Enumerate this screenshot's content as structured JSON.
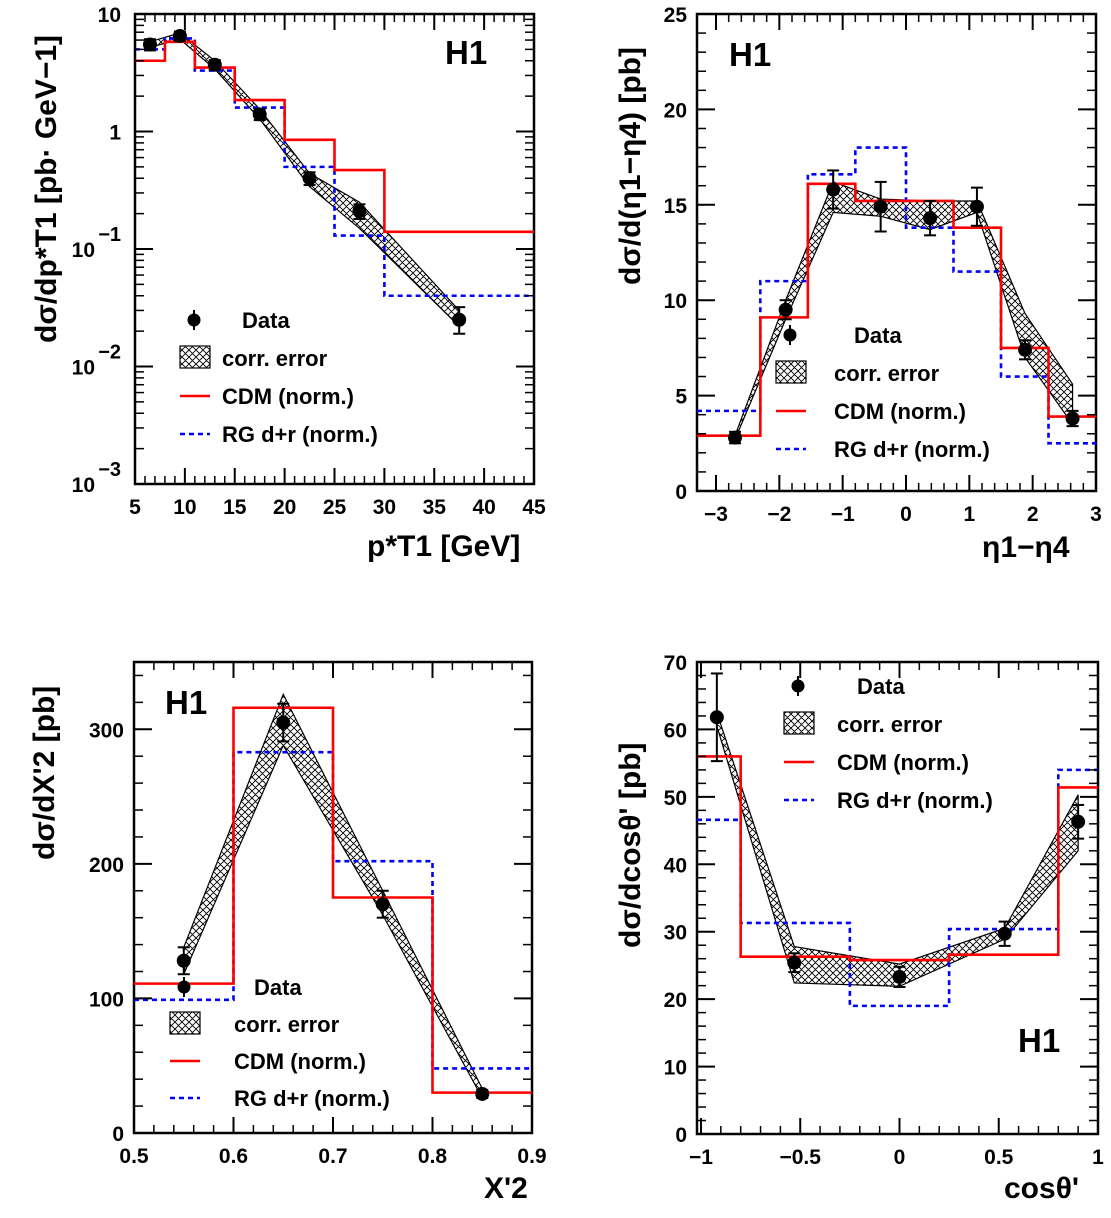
{
  "chart_data": [
    {
      "type": "line",
      "panel": "top-left",
      "label": "H1",
      "ylabel": "dσ/dp*T1 [pb· GeV−1]",
      "xlabel": "p*T1 [GeV]",
      "xlim": [
        5,
        45
      ],
      "ylim": [
        0.001,
        10
      ],
      "yscale": "log",
      "xticks": [
        "5",
        "10",
        "15",
        "20",
        "25",
        "30",
        "35",
        "40",
        "45"
      ],
      "yticks": [
        {
          "value": 10,
          "base": "10",
          "exp": ""
        },
        {
          "value": 1,
          "base": "1",
          "exp": ""
        },
        {
          "value": 0.1,
          "base": "10",
          "exp": "−1"
        },
        {
          "value": 0.01,
          "base": "10",
          "exp": "−2"
        },
        {
          "value": 0.001,
          "base": "10",
          "exp": "−3"
        }
      ],
      "legend": {
        "placement": "bottom-left",
        "data": "Data",
        "corr": "corr. error",
        "cdm": "CDM (norm.)",
        "rg": "RG d+r (norm.)"
      },
      "data": {
        "x": [
          6.5,
          9.5,
          13,
          17.5,
          22.5,
          27.5,
          37.5
        ],
        "y": [
          5.5,
          6.5,
          3.7,
          1.4,
          0.4,
          0.21,
          0.025
        ],
        "err_up": [
          0.6,
          0.6,
          0.35,
          0.15,
          0.05,
          0.03,
          0.007
        ],
        "err_dn": [
          0.6,
          0.6,
          0.35,
          0.15,
          0.05,
          0.03,
          0.006
        ]
      },
      "band": {
        "x": [
          6.5,
          9.5,
          13,
          17.5,
          22.5,
          27.5,
          37.5
        ],
        "lo": [
          5.2,
          6.1,
          3.4,
          1.28,
          0.34,
          0.15,
          0.022
        ],
        "hi": [
          5.8,
          6.9,
          4.0,
          1.55,
          0.44,
          0.25,
          0.03
        ]
      },
      "cdm": {
        "edges": [
          5,
          8,
          11,
          15,
          20,
          25,
          30,
          45
        ],
        "values": [
          4.0,
          5.8,
          3.5,
          1.85,
          0.85,
          0.47,
          0.14
        ]
      },
      "rg": {
        "edges": [
          5,
          8,
          11,
          15,
          20,
          25,
          30,
          45
        ],
        "values": [
          5.0,
          6.2,
          3.3,
          1.6,
          0.5,
          0.13,
          0.04
        ]
      }
    },
    {
      "type": "line",
      "panel": "top-right",
      "label": "H1",
      "ylabel": "dσ/d(η1−η4) [pb]",
      "xlabel": "η1−η4",
      "xlim": [
        -3.3,
        3.0
      ],
      "ylim": [
        0,
        25
      ],
      "xticks": [
        {
          "value": -3,
          "label": "−3"
        },
        {
          "value": -2,
          "label": "−2"
        },
        {
          "value": -1,
          "label": "−1"
        },
        {
          "value": 0,
          "label": "0"
        },
        {
          "value": 1,
          "label": "1"
        },
        {
          "value": 2,
          "label": "2"
        },
        {
          "value": 3,
          "label": "3"
        }
      ],
      "yticks": [
        "0",
        "5",
        "10",
        "15",
        "20",
        "25"
      ],
      "legend": {
        "placement": "bottom-center",
        "data": "Data",
        "corr": "corr. error",
        "cdm": "CDM (norm.)",
        "rg": "RG d+r (norm.)"
      },
      "data": {
        "x": [
          -2.7,
          -1.9,
          -1.15,
          -0.4,
          0.38,
          1.12,
          1.88,
          2.63
        ],
        "y": [
          2.8,
          9.5,
          15.8,
          14.9,
          14.3,
          14.9,
          7.4,
          3.8
        ],
        "err_up": [
          0.3,
          0.5,
          1.0,
          1.3,
          0.9,
          1.0,
          0.5,
          0.4
        ],
        "err_dn": [
          0.3,
          0.5,
          1.0,
          1.3,
          0.9,
          1.0,
          0.5,
          0.4
        ]
      },
      "band": {
        "x": [
          -2.7,
          -1.9,
          -1.15,
          -0.4,
          0.38,
          1.12,
          1.88,
          2.63
        ],
        "lo": [
          2.7,
          9.0,
          14.6,
          14.4,
          13.7,
          14.6,
          7.0,
          3.5
        ],
        "hi": [
          2.9,
          10.0,
          16.2,
          15.3,
          15.2,
          15.2,
          9.3,
          5.6
        ]
      },
      "cdm": {
        "edges": [
          -3.3,
          -2.3,
          -1.55,
          -0.8,
          0,
          0.75,
          1.5,
          2.25,
          3.0
        ],
        "values": [
          2.9,
          9.1,
          16.1,
          15.2,
          15.2,
          13.8,
          7.5,
          3.9
        ]
      },
      "rg": {
        "edges": [
          -3.3,
          -2.3,
          -1.55,
          -0.8,
          0,
          0.75,
          1.5,
          2.25,
          3.0
        ],
        "values": [
          4.2,
          11.0,
          16.6,
          18.0,
          13.8,
          11.5,
          6.0,
          2.5
        ]
      }
    },
    {
      "type": "line",
      "panel": "bottom-left",
      "label": "H1",
      "ylabel": "dσ/dX'2 [pb]",
      "xlabel": "X'2",
      "xlim": [
        0.5,
        0.9
      ],
      "ylim": [
        0,
        350
      ],
      "xticks": [
        "0.5",
        "0.6",
        "0.7",
        "0.8",
        "0.9"
      ],
      "yticks": [
        "0",
        "100",
        "200",
        "300"
      ],
      "legend": {
        "placement": "bottom-right",
        "data": "Data",
        "corr": "corr. error",
        "cdm": "CDM (norm.)",
        "rg": "RG d+r (norm.)"
      },
      "data": {
        "x": [
          0.55,
          0.65,
          0.75,
          0.85
        ],
        "y": [
          128,
          305,
          170,
          29
        ],
        "err_up": [
          10,
          14,
          10,
          3
        ],
        "err_dn": [
          10,
          14,
          10,
          3
        ]
      },
      "band": {
        "x": [
          0.55,
          0.65,
          0.75,
          0.85
        ],
        "lo": [
          118,
          288,
          162,
          26
        ],
        "hi": [
          138,
          326,
          180,
          33
        ]
      },
      "cdm": {
        "edges": [
          0.5,
          0.6,
          0.7,
          0.8,
          0.9
        ],
        "values": [
          111,
          316,
          175,
          30
        ]
      },
      "rg": {
        "edges": [
          0.5,
          0.6,
          0.7,
          0.8,
          0.9
        ],
        "values": [
          99,
          283,
          202,
          48
        ]
      }
    },
    {
      "type": "line",
      "panel": "bottom-right",
      "label": "H1",
      "ylabel": "dσ/dcosθ' [pb]",
      "xlabel": "cosθ'",
      "xlim": [
        -1.02,
        1.0
      ],
      "ylim": [
        0,
        70
      ],
      "xticks": [
        {
          "value": -1,
          "label": "−1"
        },
        {
          "value": -0.5,
          "label": "−0.5"
        },
        {
          "value": 0,
          "label": "0"
        },
        {
          "value": 0.5,
          "label": "0.5"
        },
        {
          "value": 1,
          "label": "1"
        }
      ],
      "yticks": [
        "0",
        "10",
        "20",
        "30",
        "40",
        "50",
        "60",
        "70"
      ],
      "legend": {
        "placement": "top-center",
        "data": "Data",
        "corr": "corr. error",
        "cdm": "CDM (norm.)",
        "rg": "RG d+r (norm.)"
      },
      "data": {
        "x": [
          -0.92,
          -0.53,
          0.0,
          0.53,
          0.9
        ],
        "y": [
          61.8,
          25.4,
          23.3,
          29.7,
          46.3
        ],
        "err_up": [
          6.5,
          1.4,
          1.5,
          1.8,
          2.5
        ],
        "err_dn": [
          6.5,
          1.4,
          1.5,
          1.8,
          2.5
        ]
      },
      "band": {
        "x": [
          -0.92,
          -0.53,
          0.0,
          0.53,
          0.9
        ],
        "lo": [
          60.5,
          22.4,
          21.9,
          28.9,
          42.0
        ],
        "hi": [
          62.5,
          27.8,
          25.2,
          30.5,
          50.3
        ]
      },
      "cdm": {
        "edges": [
          -1.02,
          -0.8,
          -0.25,
          0.25,
          0.8,
          1.0
        ],
        "values": [
          56.0,
          26.3,
          25.8,
          26.6,
          51.4
        ]
      },
      "rg": {
        "edges": [
          -1.02,
          -0.8,
          -0.25,
          0.25,
          0.8,
          1.0
        ],
        "values": [
          46.6,
          31.3,
          19.0,
          30.4,
          54.0
        ]
      }
    }
  ],
  "colors": {
    "cdm": "#ff0000",
    "rg": "#0000ff",
    "data": "#000000"
  }
}
